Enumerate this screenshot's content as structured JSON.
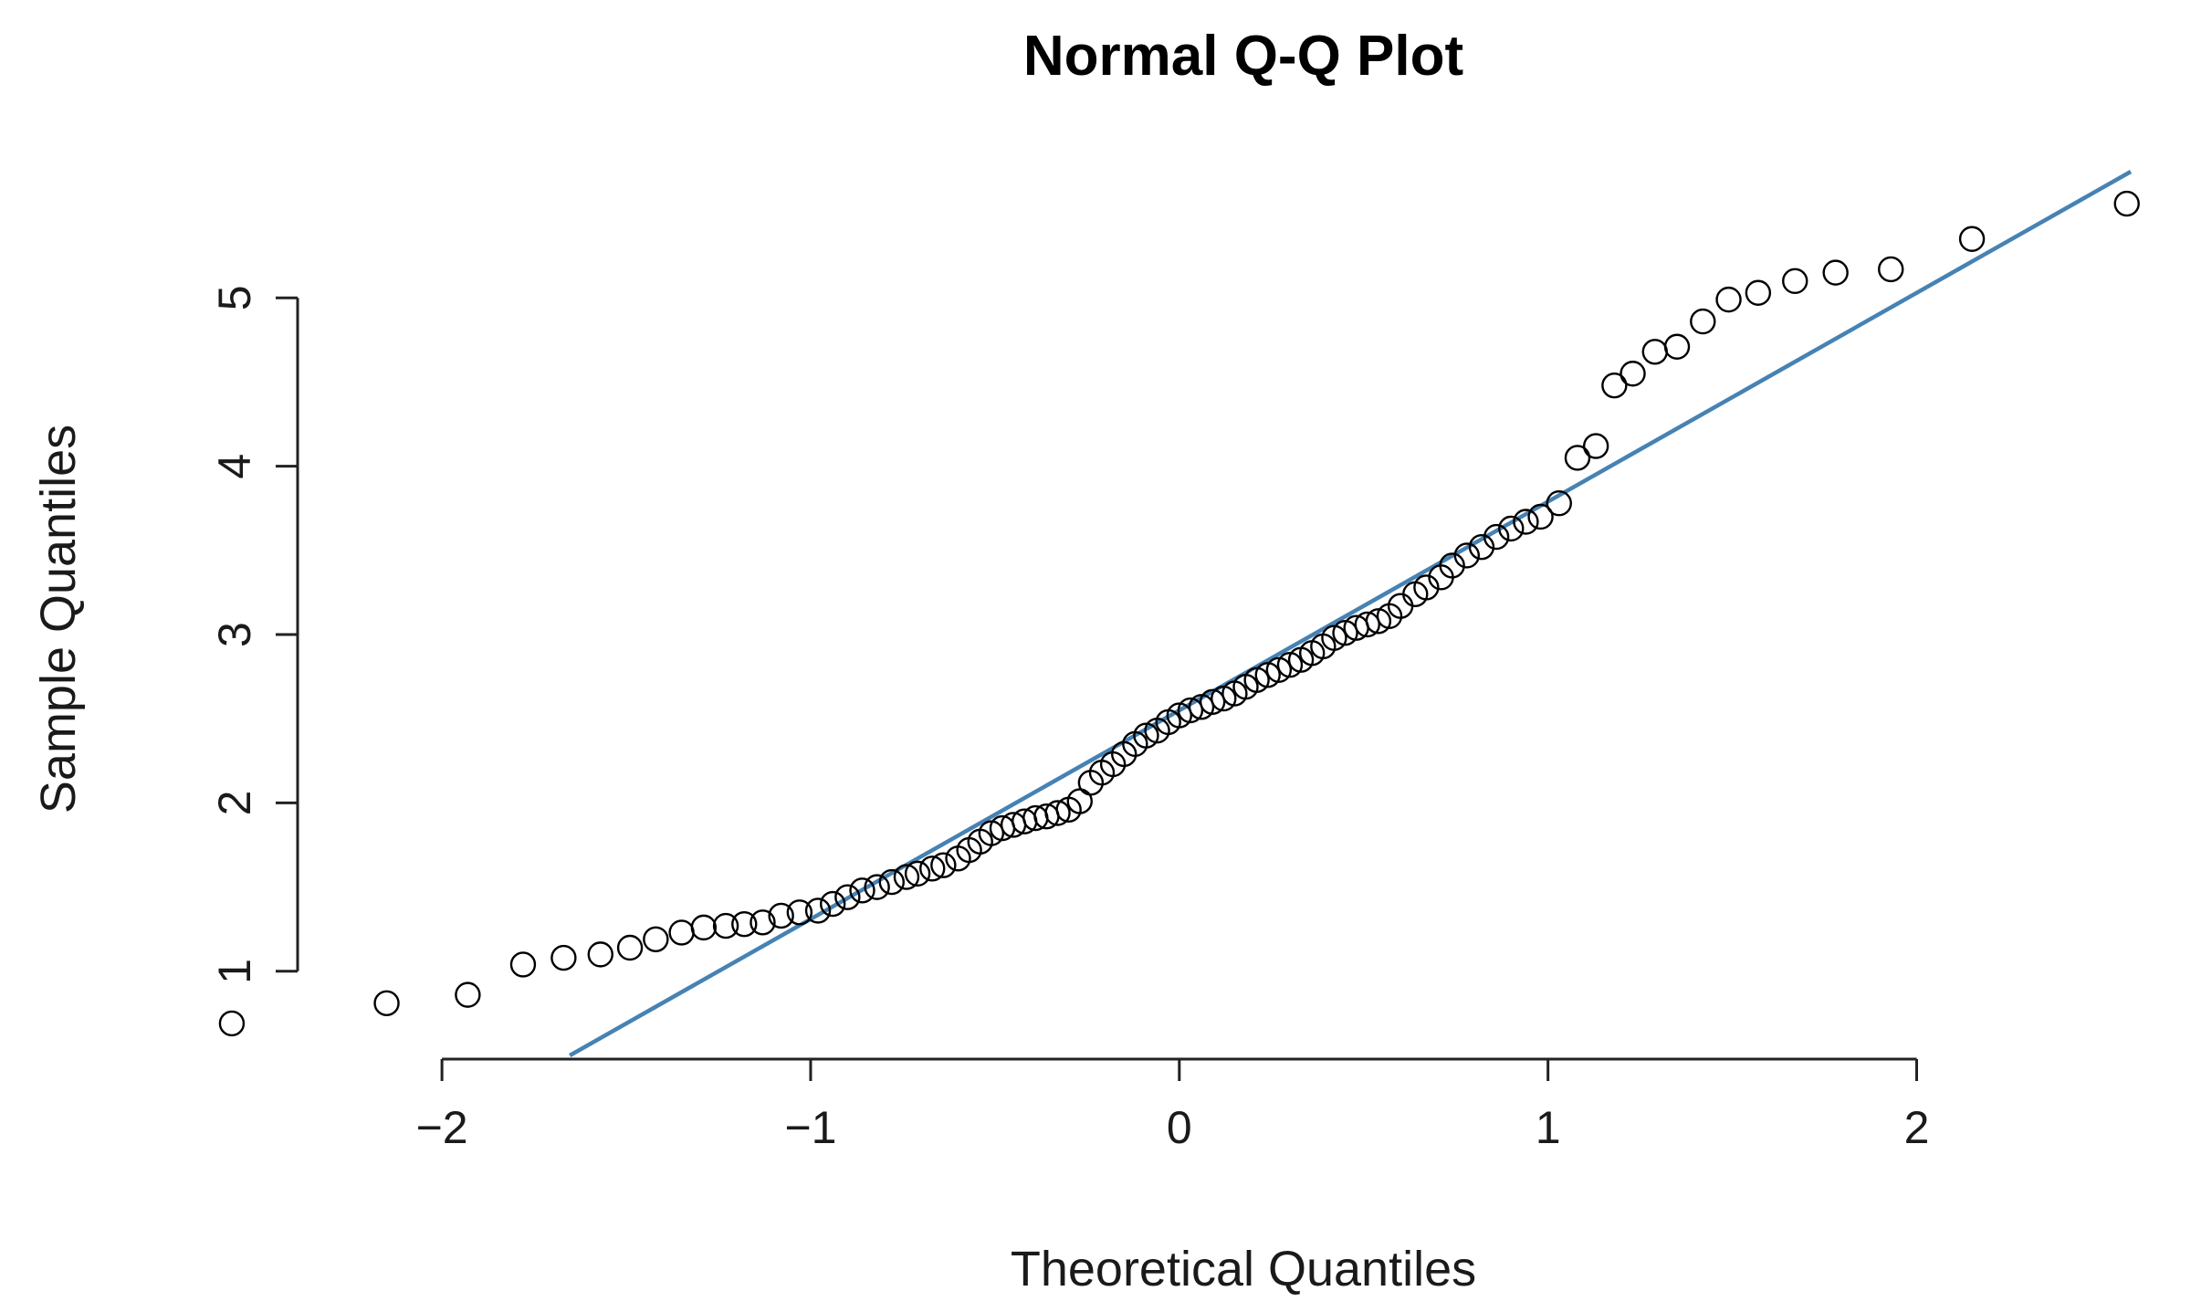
{
  "chart_data": {
    "type": "scatter",
    "title": "Normal Q-Q Plot",
    "xlabel": "Theoretical Quantiles",
    "ylabel": "Sample Quantiles",
    "xlim": [
      -2.55,
      2.65
    ],
    "ylim": [
      0.5,
      5.75
    ],
    "x_ticks": [
      -2,
      -1,
      0,
      1,
      2
    ],
    "x_tick_labels": [
      "−2",
      "−1",
      "0",
      "1",
      "2"
    ],
    "y_ticks": [
      1,
      2,
      3,
      4,
      5
    ],
    "y_tick_labels": [
      "1",
      "2",
      "3",
      "4",
      "5"
    ],
    "grid": false,
    "reference_line": {
      "color": "#4682b4",
      "intercept": 2.55,
      "slope": 1.24
    },
    "series": [
      {
        "marker": "open-circle",
        "color": "#000000",
        "points": [
          [
            -2.57,
            0.69
          ],
          [
            -2.15,
            0.81
          ],
          [
            -1.93,
            0.86
          ],
          [
            -1.78,
            1.04
          ],
          [
            -1.67,
            1.08
          ],
          [
            -1.57,
            1.1
          ],
          [
            -1.49,
            1.14
          ],
          [
            -1.42,
            1.19
          ],
          [
            -1.35,
            1.23
          ],
          [
            -1.29,
            1.26
          ],
          [
            -1.23,
            1.27
          ],
          [
            -1.18,
            1.28
          ],
          [
            -1.13,
            1.29
          ],
          [
            -1.08,
            1.33
          ],
          [
            -1.03,
            1.35
          ],
          [
            -0.98,
            1.36
          ],
          [
            -0.94,
            1.4
          ],
          [
            -0.9,
            1.44
          ],
          [
            -0.86,
            1.48
          ],
          [
            -0.82,
            1.5
          ],
          [
            -0.78,
            1.53
          ],
          [
            -0.74,
            1.56
          ],
          [
            -0.71,
            1.58
          ],
          [
            -0.67,
            1.61
          ],
          [
            -0.64,
            1.63
          ],
          [
            -0.6,
            1.67
          ],
          [
            -0.57,
            1.72
          ],
          [
            -0.54,
            1.77
          ],
          [
            -0.51,
            1.82
          ],
          [
            -0.48,
            1.85
          ],
          [
            -0.45,
            1.87
          ],
          [
            -0.42,
            1.89
          ],
          [
            -0.39,
            1.91
          ],
          [
            -0.36,
            1.92
          ],
          [
            -0.33,
            1.94
          ],
          [
            -0.3,
            1.96
          ],
          [
            -0.27,
            2.01
          ],
          [
            -0.24,
            2.12
          ],
          [
            -0.21,
            2.18
          ],
          [
            -0.18,
            2.23
          ],
          [
            -0.15,
            2.29
          ],
          [
            -0.12,
            2.35
          ],
          [
            -0.09,
            2.4
          ],
          [
            -0.06,
            2.43
          ],
          [
            -0.03,
            2.48
          ],
          [
            0.0,
            2.52
          ],
          [
            0.03,
            2.55
          ],
          [
            0.06,
            2.57
          ],
          [
            0.09,
            2.6
          ],
          [
            0.12,
            2.62
          ],
          [
            0.15,
            2.65
          ],
          [
            0.18,
            2.69
          ],
          [
            0.21,
            2.73
          ],
          [
            0.24,
            2.76
          ],
          [
            0.27,
            2.79
          ],
          [
            0.3,
            2.82
          ],
          [
            0.33,
            2.85
          ],
          [
            0.36,
            2.89
          ],
          [
            0.39,
            2.93
          ],
          [
            0.42,
            2.98
          ],
          [
            0.45,
            3.01
          ],
          [
            0.48,
            3.04
          ],
          [
            0.51,
            3.06
          ],
          [
            0.54,
            3.08
          ],
          [
            0.57,
            3.11
          ],
          [
            0.6,
            3.17
          ],
          [
            0.64,
            3.24
          ],
          [
            0.67,
            3.28
          ],
          [
            0.71,
            3.34
          ],
          [
            0.74,
            3.41
          ],
          [
            0.78,
            3.47
          ],
          [
            0.82,
            3.52
          ],
          [
            0.86,
            3.58
          ],
          [
            0.9,
            3.63
          ],
          [
            0.94,
            3.67
          ],
          [
            0.98,
            3.7
          ],
          [
            1.03,
            3.78
          ],
          [
            1.08,
            4.05
          ],
          [
            1.13,
            4.12
          ],
          [
            1.18,
            4.48
          ],
          [
            1.23,
            4.55
          ],
          [
            1.29,
            4.68
          ],
          [
            1.35,
            4.71
          ],
          [
            1.42,
            4.86
          ],
          [
            1.49,
            4.99
          ],
          [
            1.57,
            5.03
          ],
          [
            1.67,
            5.1
          ],
          [
            1.78,
            5.15
          ],
          [
            1.93,
            5.17
          ],
          [
            2.15,
            5.35
          ],
          [
            2.57,
            5.56
          ]
        ]
      }
    ]
  }
}
